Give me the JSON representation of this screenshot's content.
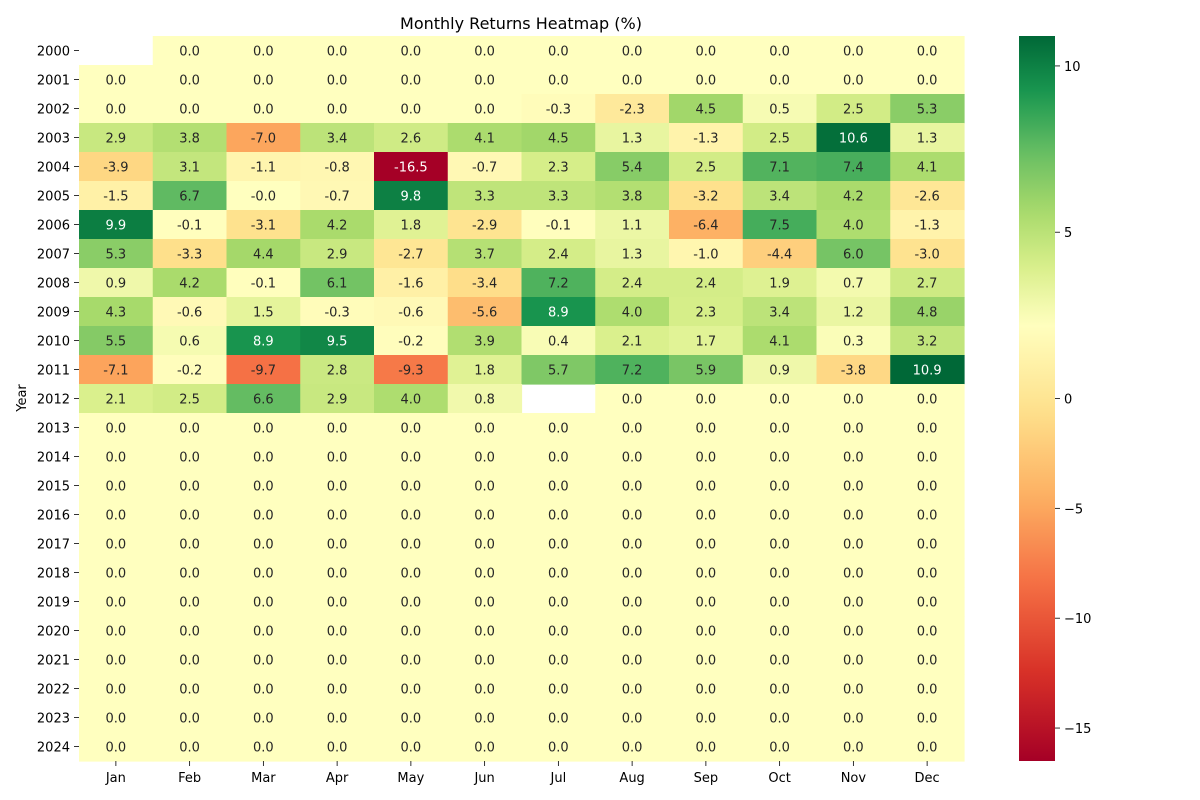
{
  "chart_data": {
    "type": "heatmap",
    "title": "Monthly Returns Heatmap (%)",
    "xlabel": "",
    "ylabel": "Year",
    "columns": [
      "Jan",
      "Feb",
      "Mar",
      "Apr",
      "May",
      "Jun",
      "Jul",
      "Aug",
      "Sep",
      "Oct",
      "Nov",
      "Dec"
    ],
    "rows": [
      "2000",
      "2001",
      "2002",
      "2003",
      "2004",
      "2005",
      "2006",
      "2007",
      "2008",
      "2009",
      "2010",
      "2011",
      "2012",
      "2013",
      "2014",
      "2015",
      "2016",
      "2017",
      "2018",
      "2019",
      "2020",
      "2021",
      "2022",
      "2023",
      "2024"
    ],
    "values": [
      [
        null,
        0.0,
        0.0,
        0.0,
        0.0,
        0.0,
        0.0,
        0.0,
        0.0,
        0.0,
        0.0,
        0.0
      ],
      [
        0.0,
        0.0,
        0.0,
        0.0,
        0.0,
        0.0,
        0.0,
        0.0,
        0.0,
        0.0,
        0.0,
        0.0
      ],
      [
        0.0,
        0.0,
        0.0,
        0.0,
        0.0,
        0.0,
        -0.3,
        -2.3,
        4.5,
        0.5,
        2.5,
        5.3
      ],
      [
        2.9,
        3.8,
        -7.0,
        3.4,
        2.6,
        4.1,
        4.5,
        1.3,
        -1.3,
        2.5,
        10.6,
        1.3
      ],
      [
        -3.9,
        3.1,
        -1.1,
        -0.8,
        -16.5,
        -0.7,
        2.3,
        5.4,
        2.5,
        7.1,
        7.4,
        4.1
      ],
      [
        -1.5,
        6.7,
        -0.0,
        -0.7,
        9.8,
        3.3,
        3.3,
        3.8,
        -3.2,
        3.4,
        4.2,
        -2.6
      ],
      [
        9.9,
        -0.1,
        -3.1,
        4.2,
        1.8,
        -2.9,
        -0.1,
        1.1,
        -6.4,
        7.5,
        4.0,
        -1.3
      ],
      [
        5.3,
        -3.3,
        4.4,
        2.9,
        -2.7,
        3.7,
        2.4,
        1.3,
        -1.0,
        -4.4,
        6.0,
        -3.0
      ],
      [
        0.9,
        4.2,
        -0.1,
        6.1,
        -1.6,
        -3.4,
        7.2,
        2.4,
        2.4,
        1.9,
        0.7,
        2.7
      ],
      [
        4.3,
        -0.6,
        1.5,
        -0.3,
        -0.6,
        -5.6,
        8.9,
        4.0,
        2.3,
        3.4,
        1.2,
        4.8
      ],
      [
        5.5,
        0.6,
        8.9,
        9.5,
        -0.2,
        3.9,
        0.4,
        2.1,
        1.7,
        4.1,
        0.3,
        3.2
      ],
      [
        -7.1,
        -0.2,
        -9.7,
        2.8,
        -9.3,
        1.8,
        5.7,
        7.2,
        5.9,
        0.9,
        -3.8,
        10.9
      ],
      [
        2.1,
        2.5,
        6.6,
        2.9,
        4.0,
        0.8,
        null,
        0.0,
        0.0,
        0.0,
        0.0,
        0.0
      ],
      [
        0.0,
        0.0,
        0.0,
        0.0,
        0.0,
        0.0,
        0.0,
        0.0,
        0.0,
        0.0,
        0.0,
        0.0
      ],
      [
        0.0,
        0.0,
        0.0,
        0.0,
        0.0,
        0.0,
        0.0,
        0.0,
        0.0,
        0.0,
        0.0,
        0.0
      ],
      [
        0.0,
        0.0,
        0.0,
        0.0,
        0.0,
        0.0,
        0.0,
        0.0,
        0.0,
        0.0,
        0.0,
        0.0
      ],
      [
        0.0,
        0.0,
        0.0,
        0.0,
        0.0,
        0.0,
        0.0,
        0.0,
        0.0,
        0.0,
        0.0,
        0.0
      ],
      [
        0.0,
        0.0,
        0.0,
        0.0,
        0.0,
        0.0,
        0.0,
        0.0,
        0.0,
        0.0,
        0.0,
        0.0
      ],
      [
        0.0,
        0.0,
        0.0,
        0.0,
        0.0,
        0.0,
        0.0,
        0.0,
        0.0,
        0.0,
        0.0,
        0.0
      ],
      [
        0.0,
        0.0,
        0.0,
        0.0,
        0.0,
        0.0,
        0.0,
        0.0,
        0.0,
        0.0,
        0.0,
        0.0
      ],
      [
        0.0,
        0.0,
        0.0,
        0.0,
        0.0,
        0.0,
        0.0,
        0.0,
        0.0,
        0.0,
        0.0,
        0.0
      ],
      [
        0.0,
        0.0,
        0.0,
        0.0,
        0.0,
        0.0,
        0.0,
        0.0,
        0.0,
        0.0,
        0.0,
        0.0
      ],
      [
        0.0,
        0.0,
        0.0,
        0.0,
        0.0,
        0.0,
        0.0,
        0.0,
        0.0,
        0.0,
        0.0,
        0.0
      ],
      [
        0.0,
        0.0,
        0.0,
        0.0,
        0.0,
        0.0,
        0.0,
        0.0,
        0.0,
        0.0,
        0.0,
        0.0
      ],
      [
        0.0,
        0.0,
        0.0,
        0.0,
        0.0,
        0.0,
        0.0,
        0.0,
        0.0,
        0.0,
        0.0,
        0.0
      ]
    ],
    "value_labels": [
      [
        "",
        "0.0",
        "0.0",
        "0.0",
        "0.0",
        "0.0",
        "0.0",
        "0.0",
        "0.0",
        "0.0",
        "0.0",
        "0.0"
      ],
      [
        "0.0",
        "0.0",
        "0.0",
        "0.0",
        "0.0",
        "0.0",
        "0.0",
        "0.0",
        "0.0",
        "0.0",
        "0.0",
        "0.0"
      ],
      [
        "0.0",
        "0.0",
        "0.0",
        "0.0",
        "0.0",
        "0.0",
        "-0.3",
        "-2.3",
        "4.5",
        "0.5",
        "2.5",
        "5.3"
      ],
      [
        "2.9",
        "3.8",
        "-7.0",
        "3.4",
        "2.6",
        "4.1",
        "4.5",
        "1.3",
        "-1.3",
        "2.5",
        "10.6",
        "1.3"
      ],
      [
        "-3.9",
        "3.1",
        "-1.1",
        "-0.8",
        "-16.5",
        "-0.7",
        "2.3",
        "5.4",
        "2.5",
        "7.1",
        "7.4",
        "4.1"
      ],
      [
        "-1.5",
        "6.7",
        "-0.0",
        "-0.7",
        "9.8",
        "3.3",
        "3.3",
        "3.8",
        "-3.2",
        "3.4",
        "4.2",
        "-2.6"
      ],
      [
        "9.9",
        "-0.1",
        "-3.1",
        "4.2",
        "1.8",
        "-2.9",
        "-0.1",
        "1.1",
        "-6.4",
        "7.5",
        "4.0",
        "-1.3"
      ],
      [
        "5.3",
        "-3.3",
        "4.4",
        "2.9",
        "-2.7",
        "3.7",
        "2.4",
        "1.3",
        "-1.0",
        "-4.4",
        "6.0",
        "-3.0"
      ],
      [
        "0.9",
        "4.2",
        "-0.1",
        "6.1",
        "-1.6",
        "-3.4",
        "7.2",
        "2.4",
        "2.4",
        "1.9",
        "0.7",
        "2.7"
      ],
      [
        "4.3",
        "-0.6",
        "1.5",
        "-0.3",
        "-0.6",
        "-5.6",
        "8.9",
        "4.0",
        "2.3",
        "3.4",
        "1.2",
        "4.8"
      ],
      [
        "5.5",
        "0.6",
        "8.9",
        "9.5",
        "-0.2",
        "3.9",
        "0.4",
        "2.1",
        "1.7",
        "4.1",
        "0.3",
        "3.2"
      ],
      [
        "-7.1",
        "-0.2",
        "-9.7",
        "2.8",
        "-9.3",
        "1.8",
        "5.7",
        "7.2",
        "5.9",
        "0.9",
        "-3.8",
        "10.9"
      ],
      [
        "2.1",
        "2.5",
        "6.6",
        "2.9",
        "4.0",
        "0.8",
        "",
        "0.0",
        "0.0",
        "0.0",
        "0.0",
        "0.0"
      ],
      [
        "0.0",
        "0.0",
        "0.0",
        "0.0",
        "0.0",
        "0.0",
        "0.0",
        "0.0",
        "0.0",
        "0.0",
        "0.0",
        "0.0"
      ],
      [
        "0.0",
        "0.0",
        "0.0",
        "0.0",
        "0.0",
        "0.0",
        "0.0",
        "0.0",
        "0.0",
        "0.0",
        "0.0",
        "0.0"
      ],
      [
        "0.0",
        "0.0",
        "0.0",
        "0.0",
        "0.0",
        "0.0",
        "0.0",
        "0.0",
        "0.0",
        "0.0",
        "0.0",
        "0.0"
      ],
      [
        "0.0",
        "0.0",
        "0.0",
        "0.0",
        "0.0",
        "0.0",
        "0.0",
        "0.0",
        "0.0",
        "0.0",
        "0.0",
        "0.0"
      ],
      [
        "0.0",
        "0.0",
        "0.0",
        "0.0",
        "0.0",
        "0.0",
        "0.0",
        "0.0",
        "0.0",
        "0.0",
        "0.0",
        "0.0"
      ],
      [
        "0.0",
        "0.0",
        "0.0",
        "0.0",
        "0.0",
        "0.0",
        "0.0",
        "0.0",
        "0.0",
        "0.0",
        "0.0",
        "0.0"
      ],
      [
        "0.0",
        "0.0",
        "0.0",
        "0.0",
        "0.0",
        "0.0",
        "0.0",
        "0.0",
        "0.0",
        "0.0",
        "0.0",
        "0.0"
      ],
      [
        "0.0",
        "0.0",
        "0.0",
        "0.0",
        "0.0",
        "0.0",
        "0.0",
        "0.0",
        "0.0",
        "0.0",
        "0.0",
        "0.0"
      ],
      [
        "0.0",
        "0.0",
        "0.0",
        "0.0",
        "0.0",
        "0.0",
        "0.0",
        "0.0",
        "0.0",
        "0.0",
        "0.0",
        "0.0"
      ],
      [
        "0.0",
        "0.0",
        "0.0",
        "0.0",
        "0.0",
        "0.0",
        "0.0",
        "0.0",
        "0.0",
        "0.0",
        "0.0",
        "0.0"
      ],
      [
        "0.0",
        "0.0",
        "0.0",
        "0.0",
        "0.0",
        "0.0",
        "0.0",
        "0.0",
        "0.0",
        "0.0",
        "0.0",
        "0.0"
      ],
      [
        "0.0",
        "0.0",
        "0.0",
        "0.0",
        "0.0",
        "0.0",
        "0.0",
        "0.0",
        "0.0",
        "0.0",
        "0.0",
        "0.0"
      ]
    ],
    "colorscale": "RdYlGn",
    "colorscale_stops": [
      "#a50026",
      "#d73027",
      "#f46d43",
      "#fdae61",
      "#fee08b",
      "#ffffbf",
      "#d9ef8b",
      "#a6d96a",
      "#66bd63",
      "#1a9850",
      "#006837"
    ],
    "vmin": -16.5,
    "vmax": 10.9,
    "vcenter": 0,
    "colorbar_ticks": [
      10,
      5,
      0,
      -5,
      -10,
      -15
    ],
    "colorbar_tick_labels": [
      "10",
      "5",
      "0",
      "−5",
      "−10",
      "−15"
    ],
    "grid": false,
    "legend": "colorbar-right"
  }
}
